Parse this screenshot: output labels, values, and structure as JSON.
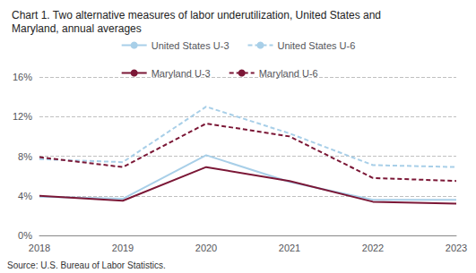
{
  "chart_data": {
    "type": "line",
    "title": "Chart 1. Two alternative measures of labor underutilization, United States and\nMaryland, annual averages",
    "source": "Source: U.S. Bureau of Labor Statistics.",
    "x": [
      2018,
      2019,
      2020,
      2021,
      2022,
      2023
    ],
    "xlim": [
      2018,
      2023
    ],
    "xticks": [
      2018,
      2019,
      2020,
      2021,
      2022,
      2023
    ],
    "ylim": [
      0,
      16
    ],
    "yticks": [
      {
        "value": 0,
        "label": "0%"
      },
      {
        "value": 4,
        "label": "4%"
      },
      {
        "value": 8,
        "label": "8%"
      },
      {
        "value": 12,
        "label": "12%"
      },
      {
        "value": 16,
        "label": "16%"
      }
    ],
    "grid": true,
    "legend": "top",
    "series": [
      {
        "name": "United States U-3",
        "color": "#a8cfe8",
        "line_style": "solid",
        "values": [
          3.9,
          3.7,
          8.1,
          5.4,
          3.6,
          3.6
        ]
      },
      {
        "name": "United States U-6",
        "color": "#a8cfe8",
        "line_style": "dashed",
        "values": [
          7.7,
          7.4,
          13.0,
          10.3,
          7.1,
          6.9
        ]
      },
      {
        "name": "Maryland U-3",
        "color": "#7b1736",
        "line_style": "solid",
        "values": [
          4.0,
          3.5,
          6.9,
          5.5,
          3.4,
          3.2
        ]
      },
      {
        "name": "Maryland U-6",
        "color": "#7b1736",
        "line_style": "dashed",
        "values": [
          7.9,
          6.9,
          11.3,
          10.0,
          5.8,
          5.5
        ]
      }
    ]
  }
}
